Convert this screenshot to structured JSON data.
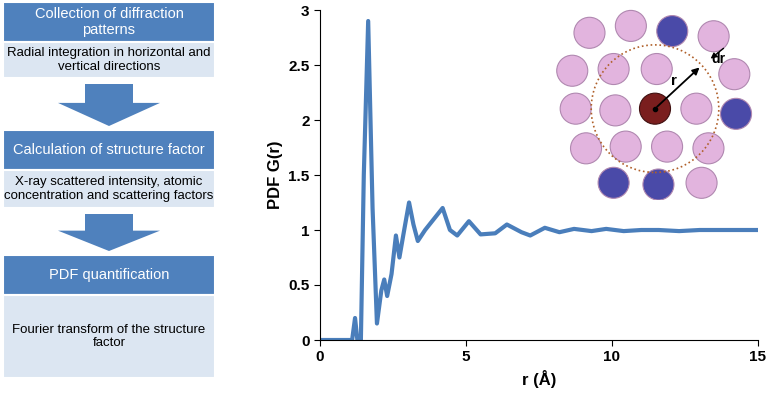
{
  "chart_data": {
    "type": "line",
    "xlabel": "r (Å)",
    "ylabel": "PDF G(r)",
    "x": [
      0,
      1.0,
      1.1,
      1.2,
      1.28,
      1.4,
      1.5,
      1.65,
      1.8,
      1.95,
      2.1,
      2.2,
      2.3,
      2.45,
      2.6,
      2.72,
      2.85,
      3.05,
      3.2,
      3.35,
      3.6,
      3.9,
      4.2,
      4.45,
      4.7,
      5.1,
      5.5,
      6.0,
      6.4,
      6.9,
      7.2,
      7.7,
      8.2,
      8.7,
      9.3,
      9.8,
      10.4,
      11.0,
      11.6,
      12.3,
      13.0,
      13.8,
      14.5,
      15
    ],
    "values": [
      0,
      0,
      0,
      0.2,
      0,
      0,
      1.5,
      2.9,
      1.2,
      0.15,
      0.45,
      0.55,
      0.4,
      0.6,
      0.95,
      0.75,
      0.95,
      1.25,
      1.05,
      0.9,
      1.0,
      1.1,
      1.2,
      1.0,
      0.95,
      1.08,
      0.96,
      0.97,
      1.05,
      0.98,
      0.95,
      1.02,
      0.98,
      1.01,
      0.99,
      1.01,
      0.99,
      1.0,
      1.0,
      0.99,
      1.0,
      1.0,
      1.0,
      1.0
    ],
    "color": "#4a7ebb",
    "xlim": [
      0,
      15
    ],
    "xticks": [
      0,
      5,
      10,
      15
    ],
    "ylim": [
      0,
      3
    ],
    "yticks": [
      0,
      0.5,
      1,
      1.5,
      2,
      2.5,
      3
    ],
    "annotations": [
      "r",
      "dr"
    ]
  },
  "diagram": {
    "steps": [
      {
        "title": "Collection of diffraction patterns",
        "detail": "Radial integration in horizontal and vertical directions"
      },
      {
        "title": "Calculation of structure factor",
        "detail": "X-ray scattered intensity, atomic concentration and scattering factors"
      },
      {
        "title": "PDF quantification",
        "detail": "Fourier transform of the structure factor"
      }
    ]
  }
}
